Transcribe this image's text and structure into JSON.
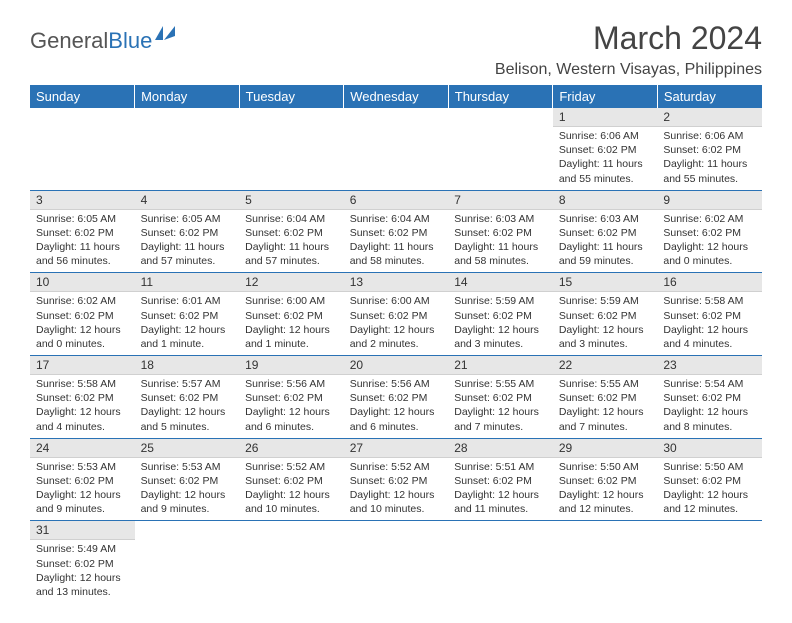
{
  "brand": {
    "part1": "General",
    "part2": "Blue"
  },
  "title": "March 2024",
  "location": "Belison, Western Visayas, Philippines",
  "colors": {
    "header_bg": "#2a72b5",
    "header_text": "#ffffff",
    "daynum_bg": "#e7e7e7",
    "border": "#2a72b5",
    "text": "#333333"
  },
  "weekdays": [
    "Sunday",
    "Monday",
    "Tuesday",
    "Wednesday",
    "Thursday",
    "Friday",
    "Saturday"
  ],
  "weeks": [
    [
      null,
      null,
      null,
      null,
      null,
      {
        "n": "1",
        "sr": "6:06 AM",
        "ss": "6:02 PM",
        "dl": "11 hours and 55 minutes."
      },
      {
        "n": "2",
        "sr": "6:06 AM",
        "ss": "6:02 PM",
        "dl": "11 hours and 55 minutes."
      }
    ],
    [
      {
        "n": "3",
        "sr": "6:05 AM",
        "ss": "6:02 PM",
        "dl": "11 hours and 56 minutes."
      },
      {
        "n": "4",
        "sr": "6:05 AM",
        "ss": "6:02 PM",
        "dl": "11 hours and 57 minutes."
      },
      {
        "n": "5",
        "sr": "6:04 AM",
        "ss": "6:02 PM",
        "dl": "11 hours and 57 minutes."
      },
      {
        "n": "6",
        "sr": "6:04 AM",
        "ss": "6:02 PM",
        "dl": "11 hours and 58 minutes."
      },
      {
        "n": "7",
        "sr": "6:03 AM",
        "ss": "6:02 PM",
        "dl": "11 hours and 58 minutes."
      },
      {
        "n": "8",
        "sr": "6:03 AM",
        "ss": "6:02 PM",
        "dl": "11 hours and 59 minutes."
      },
      {
        "n": "9",
        "sr": "6:02 AM",
        "ss": "6:02 PM",
        "dl": "12 hours and 0 minutes."
      }
    ],
    [
      {
        "n": "10",
        "sr": "6:02 AM",
        "ss": "6:02 PM",
        "dl": "12 hours and 0 minutes."
      },
      {
        "n": "11",
        "sr": "6:01 AM",
        "ss": "6:02 PM",
        "dl": "12 hours and 1 minute."
      },
      {
        "n": "12",
        "sr": "6:00 AM",
        "ss": "6:02 PM",
        "dl": "12 hours and 1 minute."
      },
      {
        "n": "13",
        "sr": "6:00 AM",
        "ss": "6:02 PM",
        "dl": "12 hours and 2 minutes."
      },
      {
        "n": "14",
        "sr": "5:59 AM",
        "ss": "6:02 PM",
        "dl": "12 hours and 3 minutes."
      },
      {
        "n": "15",
        "sr": "5:59 AM",
        "ss": "6:02 PM",
        "dl": "12 hours and 3 minutes."
      },
      {
        "n": "16",
        "sr": "5:58 AM",
        "ss": "6:02 PM",
        "dl": "12 hours and 4 minutes."
      }
    ],
    [
      {
        "n": "17",
        "sr": "5:58 AM",
        "ss": "6:02 PM",
        "dl": "12 hours and 4 minutes."
      },
      {
        "n": "18",
        "sr": "5:57 AM",
        "ss": "6:02 PM",
        "dl": "12 hours and 5 minutes."
      },
      {
        "n": "19",
        "sr": "5:56 AM",
        "ss": "6:02 PM",
        "dl": "12 hours and 6 minutes."
      },
      {
        "n": "20",
        "sr": "5:56 AM",
        "ss": "6:02 PM",
        "dl": "12 hours and 6 minutes."
      },
      {
        "n": "21",
        "sr": "5:55 AM",
        "ss": "6:02 PM",
        "dl": "12 hours and 7 minutes."
      },
      {
        "n": "22",
        "sr": "5:55 AM",
        "ss": "6:02 PM",
        "dl": "12 hours and 7 minutes."
      },
      {
        "n": "23",
        "sr": "5:54 AM",
        "ss": "6:02 PM",
        "dl": "12 hours and 8 minutes."
      }
    ],
    [
      {
        "n": "24",
        "sr": "5:53 AM",
        "ss": "6:02 PM",
        "dl": "12 hours and 9 minutes."
      },
      {
        "n": "25",
        "sr": "5:53 AM",
        "ss": "6:02 PM",
        "dl": "12 hours and 9 minutes."
      },
      {
        "n": "26",
        "sr": "5:52 AM",
        "ss": "6:02 PM",
        "dl": "12 hours and 10 minutes."
      },
      {
        "n": "27",
        "sr": "5:52 AM",
        "ss": "6:02 PM",
        "dl": "12 hours and 10 minutes."
      },
      {
        "n": "28",
        "sr": "5:51 AM",
        "ss": "6:02 PM",
        "dl": "12 hours and 11 minutes."
      },
      {
        "n": "29",
        "sr": "5:50 AM",
        "ss": "6:02 PM",
        "dl": "12 hours and 12 minutes."
      },
      {
        "n": "30",
        "sr": "5:50 AM",
        "ss": "6:02 PM",
        "dl": "12 hours and 12 minutes."
      }
    ],
    [
      {
        "n": "31",
        "sr": "5:49 AM",
        "ss": "6:02 PM",
        "dl": "12 hours and 13 minutes."
      },
      null,
      null,
      null,
      null,
      null,
      null
    ]
  ],
  "labels": {
    "sunrise": "Sunrise:",
    "sunset": "Sunset:",
    "daylight": "Daylight:"
  }
}
